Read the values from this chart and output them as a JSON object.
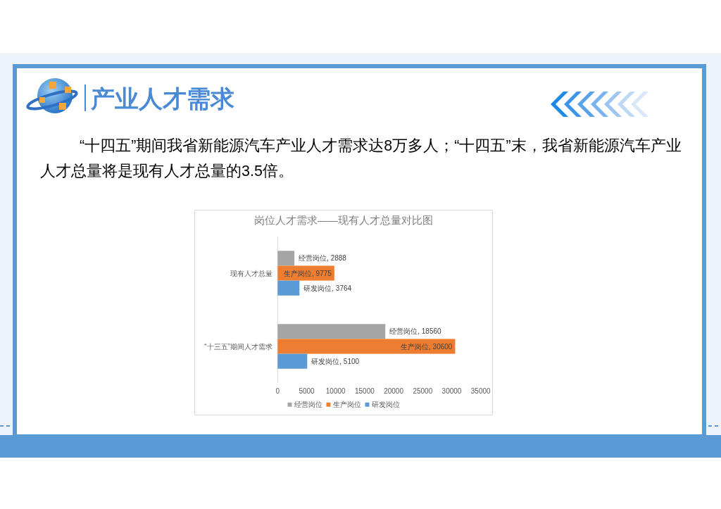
{
  "chart_data": {
    "type": "bar",
    "orientation": "horizontal",
    "title": "岗位人才需求——现有人才总量对比图",
    "annotations": [
      "产业人才需求",
      "“十四五”期间我省新能源汽车产业人才需求达8万多人；“十四五”末，我省新能源汽车产业人才总量将是现有人才总量的3.5倍。"
    ],
    "categories": [
      "现有人才总量",
      "“十三五”期间人才需求"
    ],
    "series": [
      {
        "name": "经营岗位",
        "color": "#a5a5a5",
        "values": [
          2888,
          18560
        ],
        "value_labels": [
          "经营岗位, 2888",
          "经营岗位, 18560"
        ]
      },
      {
        "name": "生产岗位",
        "color": "#ed7d31",
        "values": [
          9775,
          30600
        ],
        "value_labels": [
          "生产岗位, 9775",
          "生产岗位, 30600"
        ]
      },
      {
        "name": "研发岗位",
        "color": "#5b9bd5",
        "values": [
          3764,
          5100
        ],
        "value_labels": [
          "研发岗位, 3764",
          "研发岗位, 5100"
        ]
      }
    ],
    "xlim": [
      0,
      35000
    ],
    "xticks": [
      0,
      5000,
      10000,
      15000,
      20000,
      25000,
      30000,
      35000
    ],
    "legend": "bottom"
  }
}
